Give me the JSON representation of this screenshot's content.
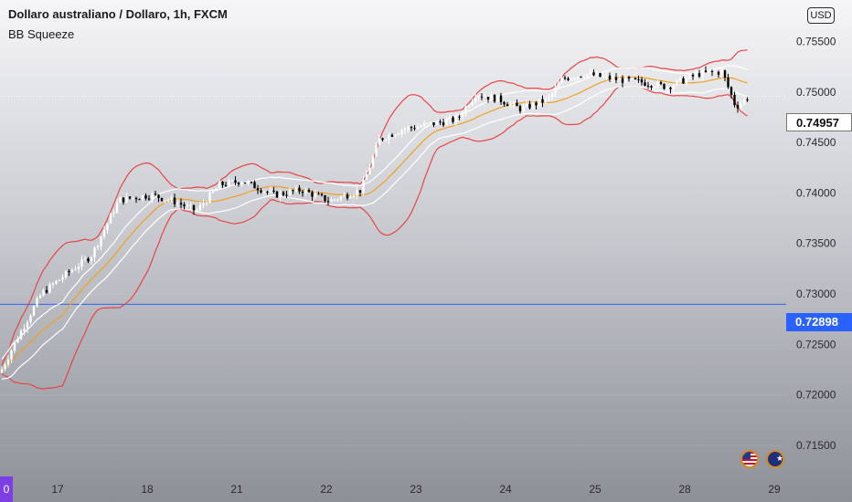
{
  "header": {
    "title": "Dollaro australiano / Dollaro, 1h, FXCM",
    "indicator": "BB Squeeze",
    "currency": "USD"
  },
  "price_axis": {
    "ticks": [
      "0.75500",
      "0.75000",
      "0.74500",
      "0.74000",
      "0.73500",
      "0.73000",
      "0.72500",
      "0.72000",
      "0.71500"
    ],
    "current_price": "0.74957",
    "horizontal_level": "0.72898"
  },
  "time_axis": {
    "labels": [
      "17",
      "18",
      "21",
      "22",
      "23",
      "24",
      "25",
      "28",
      "29"
    ],
    "start_marker": "0"
  },
  "flags": [
    "us-flag",
    "australia-flag"
  ],
  "colors": {
    "candle_up": "#ffffff",
    "candle_down": "#000000",
    "bollinger_band": "#e84545",
    "keltner_channel": "#ffffff",
    "basis_line": "#f0a020",
    "level_line": "#2962ff",
    "current_tag_bg": "#ffffff",
    "level_tag_bg": "#2962ff"
  },
  "chart_data": {
    "type": "candlestick",
    "title": "Dollaro australiano / Dollaro, 1h, FXCM",
    "indicator": "BB Squeeze",
    "ylim": [
      0.7141,
      0.7573
    ],
    "x_labels": [
      "17",
      "18",
      "21",
      "22",
      "23",
      "24",
      "25",
      "28",
      "29"
    ],
    "current_price": 0.74957,
    "horizontal_level": 0.72898,
    "price_path": [
      {
        "x": 0,
        "y": 0.7222
      },
      {
        "x": 20,
        "y": 0.7258
      },
      {
        "x": 45,
        "y": 0.73
      },
      {
        "x": 70,
        "y": 0.7318
      },
      {
        "x": 100,
        "y": 0.7338
      },
      {
        "x": 130,
        "y": 0.7393
      },
      {
        "x": 165,
        "y": 0.7398
      },
      {
        "x": 190,
        "y": 0.7392
      },
      {
        "x": 215,
        "y": 0.7382
      },
      {
        "x": 240,
        "y": 0.7408
      },
      {
        "x": 265,
        "y": 0.7412
      },
      {
        "x": 300,
        "y": 0.7398
      },
      {
        "x": 330,
        "y": 0.7403
      },
      {
        "x": 360,
        "y": 0.7392
      },
      {
        "x": 395,
        "y": 0.7403
      },
      {
        "x": 415,
        "y": 0.7453
      },
      {
        "x": 440,
        "y": 0.7463
      },
      {
        "x": 470,
        "y": 0.7468
      },
      {
        "x": 500,
        "y": 0.7473
      },
      {
        "x": 520,
        "y": 0.7498
      },
      {
        "x": 545,
        "y": 0.7493
      },
      {
        "x": 570,
        "y": 0.7483
      },
      {
        "x": 600,
        "y": 0.7493
      },
      {
        "x": 615,
        "y": 0.7513
      },
      {
        "x": 640,
        "y": 0.7518
      },
      {
        "x": 670,
        "y": 0.7513
      },
      {
        "x": 700,
        "y": 0.751
      },
      {
        "x": 730,
        "y": 0.7505
      },
      {
        "x": 765,
        "y": 0.7518
      },
      {
        "x": 790,
        "y": 0.752
      },
      {
        "x": 805,
        "y": 0.7485
      },
      {
        "x": 820,
        "y": 0.7496
      }
    ]
  }
}
